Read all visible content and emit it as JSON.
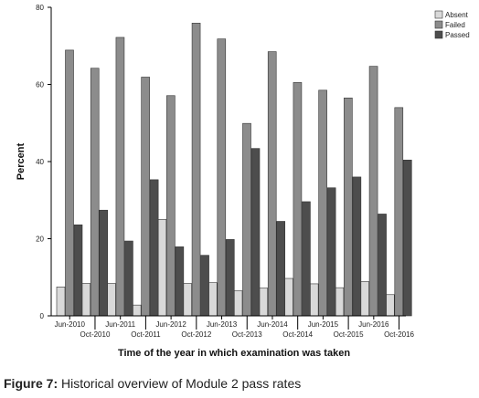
{
  "chart_data": {
    "type": "bar",
    "ylabel": "Percent",
    "xlabel": "Time of the year in which examination was taken",
    "ylim": [
      0,
      80
    ],
    "yticks": [
      0,
      20,
      40,
      60,
      80
    ],
    "ytick_labels": [
      "0",
      "20",
      "40",
      "60",
      "80"
    ],
    "categories": [
      "Jun-2010",
      "Oct-2010",
      "Jun-2011",
      "Oct-2011",
      "Jun-2012",
      "Oct-2012",
      "Jun-2013",
      "Oct-2013",
      "Jun-2014",
      "Oct-2014",
      "Jun-2015",
      "Oct-2015",
      "Jun-2016",
      "Oct-2016"
    ],
    "legend": "top-right",
    "series": [
      {
        "name": "Absent",
        "color": "#d9d9d9",
        "values": [
          7.5,
          8.4,
          8.4,
          2.8,
          25.0,
          8.4,
          8.6,
          6.5,
          7.2,
          9.7,
          8.3,
          7.3,
          8.9,
          5.5
        ]
      },
      {
        "name": "Failed",
        "color": "#8c8c8c",
        "values": [
          68.9,
          64.2,
          72.2,
          61.9,
          57.1,
          75.9,
          71.8,
          49.9,
          68.5,
          60.5,
          58.5,
          56.5,
          64.7,
          54.0
        ]
      },
      {
        "name": "Passed",
        "color": "#4d4d4d",
        "values": [
          23.6,
          27.4,
          19.4,
          35.3,
          17.9,
          15.7,
          19.8,
          43.4,
          24.5,
          29.6,
          33.2,
          36.0,
          26.4,
          40.4
        ]
      }
    ]
  },
  "caption": {
    "label": "Figure 7:",
    "text": " Historical overview of Module 2 pass rates"
  }
}
